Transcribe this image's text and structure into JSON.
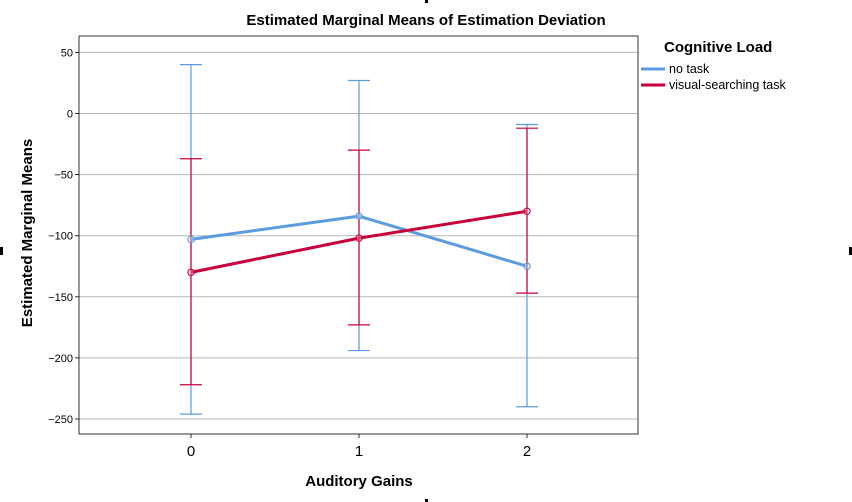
{
  "chart_data": {
    "type": "line",
    "title": "Estimated Marginal Means of Estimation Deviation",
    "xlabel": "Auditory Gains",
    "ylabel": "Estimated Marginal Means",
    "categories": [
      "0",
      "1",
      "2"
    ],
    "ylim": [
      -260,
      58
    ],
    "yticks": [
      50,
      0,
      -50,
      -100,
      -150,
      -200,
      -250
    ],
    "grid": true,
    "legend": {
      "title": "Cognitive Load",
      "placement": "top-right"
    },
    "series": [
      {
        "name": "no task",
        "color": "#5b9be0",
        "values": [
          -103,
          -84,
          -125
        ],
        "error_low": [
          -246,
          -194,
          -240
        ],
        "error_high": [
          40,
          27,
          -9
        ]
      },
      {
        "name": "visual-searching task",
        "color": "#c8003c",
        "values": [
          -130,
          -102,
          -80
        ],
        "error_low": [
          -222,
          -173,
          -147
        ],
        "error_high": [
          -37,
          -30,
          -12
        ]
      }
    ]
  }
}
